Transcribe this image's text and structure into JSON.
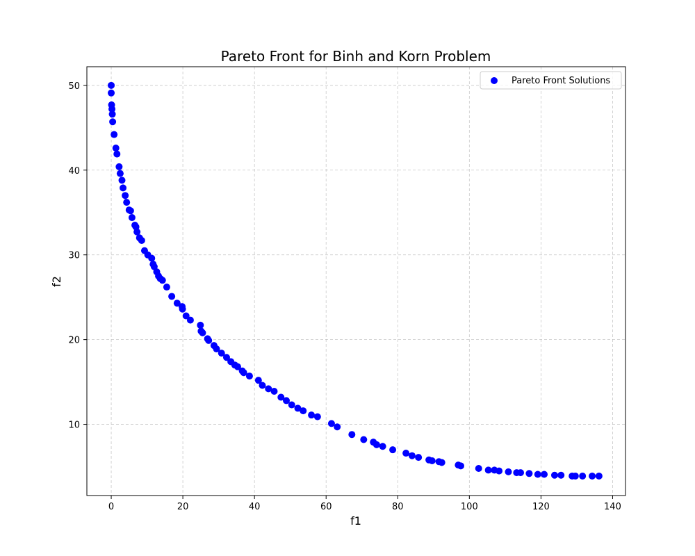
{
  "chart_data": {
    "type": "scatter",
    "title": "Pareto Front for Binh and Korn Problem",
    "xlabel": "f1",
    "ylabel": "f2",
    "xlim": [
      -6.8,
      143.6
    ],
    "ylim": [
      1.6,
      52.2
    ],
    "xticks": [
      0,
      20,
      40,
      60,
      80,
      100,
      120,
      140
    ],
    "yticks": [
      10,
      20,
      30,
      40,
      50
    ],
    "grid": true,
    "legend_position": "top-right",
    "colors": {
      "points": "#0000ff"
    },
    "series": [
      {
        "name": "Pareto Front Solutions",
        "points": [
          [
            0.0,
            50.0
          ],
          [
            0.0,
            49.1
          ],
          [
            0.1,
            47.7
          ],
          [
            0.2,
            47.2
          ],
          [
            0.3,
            46.6
          ],
          [
            0.4,
            45.7
          ],
          [
            0.8,
            44.2
          ],
          [
            1.3,
            42.6
          ],
          [
            1.6,
            41.9
          ],
          [
            2.2,
            40.4
          ],
          [
            2.5,
            39.6
          ],
          [
            3.0,
            38.8
          ],
          [
            3.3,
            37.9
          ],
          [
            3.9,
            37.0
          ],
          [
            4.3,
            36.2
          ],
          [
            5.0,
            35.3
          ],
          [
            5.4,
            35.2
          ],
          [
            5.8,
            34.4
          ],
          [
            6.6,
            33.5
          ],
          [
            6.9,
            33.3
          ],
          [
            7.2,
            32.7
          ],
          [
            7.9,
            32.0
          ],
          [
            8.5,
            31.7
          ],
          [
            9.3,
            30.5
          ],
          [
            10.2,
            30.0
          ],
          [
            11.3,
            29.6
          ],
          [
            11.7,
            28.9
          ],
          [
            12.0,
            28.6
          ],
          [
            12.7,
            28.0
          ],
          [
            13.2,
            27.5
          ],
          [
            13.7,
            27.2
          ],
          [
            14.3,
            27.0
          ],
          [
            15.5,
            26.2
          ],
          [
            16.9,
            25.1
          ],
          [
            18.4,
            24.3
          ],
          [
            19.8,
            23.9
          ],
          [
            19.9,
            23.6
          ],
          [
            20.9,
            22.8
          ],
          [
            22.1,
            22.3
          ],
          [
            24.9,
            21.7
          ],
          [
            25.1,
            21.0
          ],
          [
            25.5,
            20.8
          ],
          [
            26.9,
            20.1
          ],
          [
            27.2,
            19.9
          ],
          [
            28.7,
            19.3
          ],
          [
            29.4,
            18.9
          ],
          [
            30.8,
            18.4
          ],
          [
            32.2,
            17.9
          ],
          [
            33.4,
            17.4
          ],
          [
            34.5,
            17.0
          ],
          [
            35.3,
            16.8
          ],
          [
            36.6,
            16.3
          ],
          [
            37.0,
            16.1
          ],
          [
            38.6,
            15.7
          ],
          [
            41.1,
            15.2
          ],
          [
            42.2,
            14.6
          ],
          [
            43.9,
            14.2
          ],
          [
            45.5,
            13.9
          ],
          [
            47.4,
            13.2
          ],
          [
            48.9,
            12.8
          ],
          [
            50.4,
            12.3
          ],
          [
            52.1,
            11.9
          ],
          [
            53.6,
            11.6
          ],
          [
            55.9,
            11.1
          ],
          [
            57.6,
            10.9
          ],
          [
            61.5,
            10.1
          ],
          [
            63.1,
            9.7
          ],
          [
            67.2,
            8.8
          ],
          [
            70.5,
            8.2
          ],
          [
            73.2,
            7.9
          ],
          [
            74.1,
            7.6
          ],
          [
            75.8,
            7.4
          ],
          [
            78.6,
            7.0
          ],
          [
            82.3,
            6.6
          ],
          [
            84.0,
            6.3
          ],
          [
            85.8,
            6.1
          ],
          [
            88.7,
            5.8
          ],
          [
            89.6,
            5.7
          ],
          [
            91.5,
            5.6
          ],
          [
            92.3,
            5.5
          ],
          [
            96.9,
            5.2
          ],
          [
            97.6,
            5.1
          ],
          [
            102.6,
            4.8
          ],
          [
            105.3,
            4.6
          ],
          [
            107.0,
            4.6
          ],
          [
            108.3,
            4.5
          ],
          [
            110.9,
            4.4
          ],
          [
            113.2,
            4.3
          ],
          [
            114.3,
            4.3
          ],
          [
            116.7,
            4.2
          ],
          [
            119.1,
            4.1
          ],
          [
            120.9,
            4.1
          ],
          [
            123.8,
            4.0
          ],
          [
            125.6,
            4.0
          ],
          [
            128.7,
            3.9
          ],
          [
            129.6,
            3.9
          ],
          [
            131.6,
            3.9
          ],
          [
            134.3,
            3.9
          ],
          [
            136.2,
            3.9
          ]
        ]
      }
    ]
  }
}
